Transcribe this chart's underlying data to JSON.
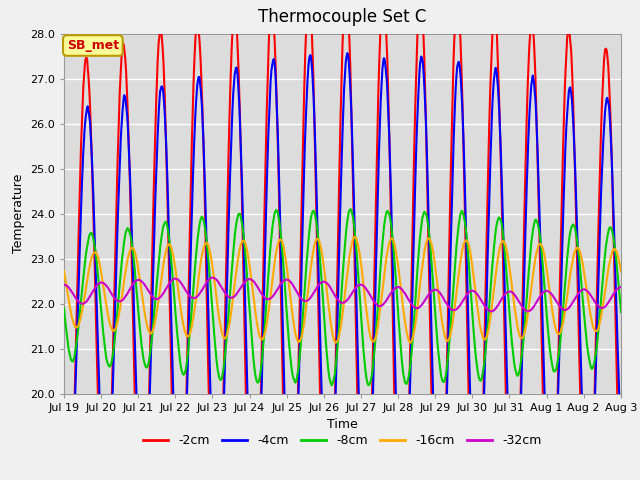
{
  "title": "Thermocouple Set C",
  "xlabel": "Time",
  "ylabel": "Temperature",
  "ylim": [
    20.0,
    28.0
  ],
  "yticks": [
    20.0,
    21.0,
    22.0,
    23.0,
    24.0,
    25.0,
    26.0,
    27.0,
    28.0
  ],
  "xtick_labels": [
    "Jul 19",
    "Jul 20",
    "Jul 21",
    "Jul 22",
    "Jul 23",
    "Jul 24",
    "Jul 25",
    "Jul 26",
    "Jul 27",
    "Jul 28",
    "Jul 29",
    "Jul 30",
    "Jul 31",
    "Aug 1",
    "Aug 2",
    "Aug 3"
  ],
  "legend_labels": [
    "-2cm",
    "-4cm",
    "-8cm",
    "-16cm",
    "-32cm"
  ],
  "line_colors": [
    "#ff0000",
    "#0000ff",
    "#00cc00",
    "#ffaa00",
    "#cc00cc"
  ],
  "line_widths": [
    1.5,
    1.5,
    1.5,
    1.5,
    1.5
  ],
  "annotation_text": "SB_met",
  "annotation_bg": "#ffff99",
  "annotation_border": "#bb9900",
  "fig_bg": "#f0f0f0",
  "plot_bg": "#dcdcdc",
  "grid_color": "#ffffff",
  "title_fontsize": 12,
  "axis_fontsize": 9,
  "tick_fontsize": 8,
  "legend_fontsize": 9
}
